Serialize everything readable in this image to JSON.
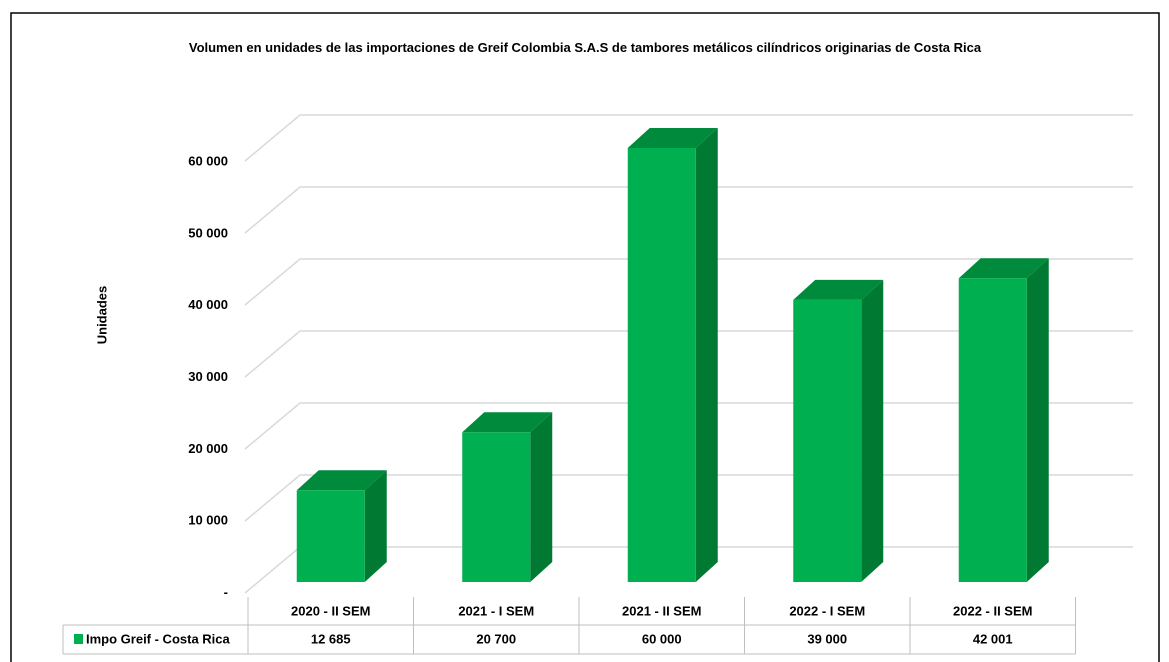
{
  "chart_data": {
    "type": "bar3d",
    "title": "Volumen en unidades de las importaciones de Greif Colombia S.A.S de tambores metálicos cilíndricos  originarias de Costa Rica",
    "y_label": "Unidades",
    "categories": [
      "2020 - II SEM",
      "2021 - I SEM",
      "2021 - II SEM",
      "2022 - I SEM",
      "2022 - II SEM"
    ],
    "series": [
      {
        "name": "Impo Greif - Costa Rica",
        "color": "#00b050",
        "values": [
          12685,
          20700,
          60000,
          39000,
          42001
        ],
        "value_labels": [
          "12 685",
          "20 700",
          "60 000",
          "39 000",
          "42 001"
        ]
      }
    ],
    "ylim": [
      0,
      60000
    ],
    "yticks": [
      {
        "value": 0,
        "label": "-"
      },
      {
        "value": 10000,
        "label": "10 000"
      },
      {
        "value": 20000,
        "label": "20 000"
      },
      {
        "value": 30000,
        "label": "30 000"
      },
      {
        "value": 40000,
        "label": "40 000"
      },
      {
        "value": 50000,
        "label": "50 000"
      },
      {
        "value": 60000,
        "label": "60 000"
      }
    ],
    "grid": true
  }
}
